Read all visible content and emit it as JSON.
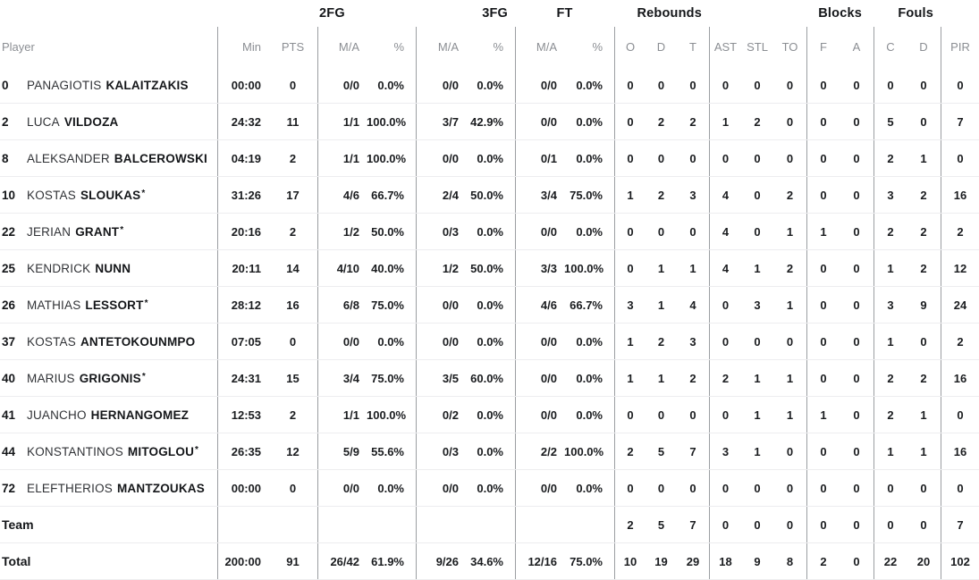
{
  "colors": {
    "data_text": "#1a1c1f",
    "header_text": "#8b8e93",
    "group_divider": "#9b9ea2",
    "row_separator": "#ededef",
    "background": "#ffffff"
  },
  "table": {
    "groups": {
      "fg2": "2FG",
      "fg3": "3FG",
      "ft": "FT",
      "rebounds": "Rebounds",
      "blocks": "Blocks",
      "fouls": "Fouls"
    },
    "headers": {
      "player": "Player",
      "min": "Min",
      "pts": "PTS",
      "fg2_ma": "M/A",
      "fg2_pct": "%",
      "fg3_ma": "M/A",
      "fg3_pct": "%",
      "ft_ma": "M/A",
      "ft_pct": "%",
      "reb_o": "O",
      "reb_d": "D",
      "reb_t": "T",
      "ast": "AST",
      "stl": "STL",
      "to": "TO",
      "blk_f": "F",
      "blk_a": "A",
      "foul_c": "C",
      "foul_d": "D",
      "pir": "PIR"
    }
  },
  "players": [
    {
      "number": "0",
      "first": "PANAGIOTIS",
      "last": "KALAITZAKIS",
      "star": "",
      "min": "00:00",
      "pts": "0",
      "fg2_ma": "0/0",
      "fg2_pct": "0.0%",
      "fg3_ma": "0/0",
      "fg3_pct": "0.0%",
      "ft_ma": "0/0",
      "ft_pct": "0.0%",
      "reb_o": "0",
      "reb_d": "0",
      "reb_t": "0",
      "ast": "0",
      "stl": "0",
      "to": "0",
      "blk_f": "0",
      "blk_a": "0",
      "foul_c": "0",
      "foul_d": "0",
      "pir": "0"
    },
    {
      "number": "2",
      "first": "LUCA",
      "last": "VILDOZA",
      "star": "",
      "min": "24:32",
      "pts": "11",
      "fg2_ma": "1/1",
      "fg2_pct": "100.0%",
      "fg3_ma": "3/7",
      "fg3_pct": "42.9%",
      "ft_ma": "0/0",
      "ft_pct": "0.0%",
      "reb_o": "0",
      "reb_d": "2",
      "reb_t": "2",
      "ast": "1",
      "stl": "2",
      "to": "0",
      "blk_f": "0",
      "blk_a": "0",
      "foul_c": "5",
      "foul_d": "0",
      "pir": "7"
    },
    {
      "number": "8",
      "first": "ALEKSANDER",
      "last": "BALCEROWSKI",
      "star": "",
      "min": "04:19",
      "pts": "2",
      "fg2_ma": "1/1",
      "fg2_pct": "100.0%",
      "fg3_ma": "0/0",
      "fg3_pct": "0.0%",
      "ft_ma": "0/1",
      "ft_pct": "0.0%",
      "reb_o": "0",
      "reb_d": "0",
      "reb_t": "0",
      "ast": "0",
      "stl": "0",
      "to": "0",
      "blk_f": "0",
      "blk_a": "0",
      "foul_c": "2",
      "foul_d": "1",
      "pir": "0"
    },
    {
      "number": "10",
      "first": "KOSTAS",
      "last": "SLOUKAS",
      "star": "*",
      "min": "31:26",
      "pts": "17",
      "fg2_ma": "4/6",
      "fg2_pct": "66.7%",
      "fg3_ma": "2/4",
      "fg3_pct": "50.0%",
      "ft_ma": "3/4",
      "ft_pct": "75.0%",
      "reb_o": "1",
      "reb_d": "2",
      "reb_t": "3",
      "ast": "4",
      "stl": "0",
      "to": "2",
      "blk_f": "0",
      "blk_a": "0",
      "foul_c": "3",
      "foul_d": "2",
      "pir": "16"
    },
    {
      "number": "22",
      "first": "JERIAN",
      "last": "GRANT",
      "star": "*",
      "min": "20:16",
      "pts": "2",
      "fg2_ma": "1/2",
      "fg2_pct": "50.0%",
      "fg3_ma": "0/3",
      "fg3_pct": "0.0%",
      "ft_ma": "0/0",
      "ft_pct": "0.0%",
      "reb_o": "0",
      "reb_d": "0",
      "reb_t": "0",
      "ast": "4",
      "stl": "0",
      "to": "1",
      "blk_f": "1",
      "blk_a": "0",
      "foul_c": "2",
      "foul_d": "2",
      "pir": "2"
    },
    {
      "number": "25",
      "first": "KENDRICK",
      "last": "NUNN",
      "star": "",
      "min": "20:11",
      "pts": "14",
      "fg2_ma": "4/10",
      "fg2_pct": "40.0%",
      "fg3_ma": "1/2",
      "fg3_pct": "50.0%",
      "ft_ma": "3/3",
      "ft_pct": "100.0%",
      "reb_o": "0",
      "reb_d": "1",
      "reb_t": "1",
      "ast": "4",
      "stl": "1",
      "to": "2",
      "blk_f": "0",
      "blk_a": "0",
      "foul_c": "1",
      "foul_d": "2",
      "pir": "12"
    },
    {
      "number": "26",
      "first": "MATHIAS",
      "last": "LESSORT",
      "star": "*",
      "min": "28:12",
      "pts": "16",
      "fg2_ma": "6/8",
      "fg2_pct": "75.0%",
      "fg3_ma": "0/0",
      "fg3_pct": "0.0%",
      "ft_ma": "4/6",
      "ft_pct": "66.7%",
      "reb_o": "3",
      "reb_d": "1",
      "reb_t": "4",
      "ast": "0",
      "stl": "3",
      "to": "1",
      "blk_f": "0",
      "blk_a": "0",
      "foul_c": "3",
      "foul_d": "9",
      "pir": "24"
    },
    {
      "number": "37",
      "first": "KOSTAS",
      "last": "ANTETOKOUNMPO",
      "star": "",
      "min": "07:05",
      "pts": "0",
      "fg2_ma": "0/0",
      "fg2_pct": "0.0%",
      "fg3_ma": "0/0",
      "fg3_pct": "0.0%",
      "ft_ma": "0/0",
      "ft_pct": "0.0%",
      "reb_o": "1",
      "reb_d": "2",
      "reb_t": "3",
      "ast": "0",
      "stl": "0",
      "to": "0",
      "blk_f": "0",
      "blk_a": "0",
      "foul_c": "1",
      "foul_d": "0",
      "pir": "2"
    },
    {
      "number": "40",
      "first": "MARIUS",
      "last": "GRIGONIS",
      "star": "*",
      "min": "24:31",
      "pts": "15",
      "fg2_ma": "3/4",
      "fg2_pct": "75.0%",
      "fg3_ma": "3/5",
      "fg3_pct": "60.0%",
      "ft_ma": "0/0",
      "ft_pct": "0.0%",
      "reb_o": "1",
      "reb_d": "1",
      "reb_t": "2",
      "ast": "2",
      "stl": "1",
      "to": "1",
      "blk_f": "0",
      "blk_a": "0",
      "foul_c": "2",
      "foul_d": "2",
      "pir": "16"
    },
    {
      "number": "41",
      "first": "JUANCHO",
      "last": "HERNANGOMEZ",
      "star": "",
      "min": "12:53",
      "pts": "2",
      "fg2_ma": "1/1",
      "fg2_pct": "100.0%",
      "fg3_ma": "0/2",
      "fg3_pct": "0.0%",
      "ft_ma": "0/0",
      "ft_pct": "0.0%",
      "reb_o": "0",
      "reb_d": "0",
      "reb_t": "0",
      "ast": "0",
      "stl": "1",
      "to": "1",
      "blk_f": "1",
      "blk_a": "0",
      "foul_c": "2",
      "foul_d": "1",
      "pir": "0"
    },
    {
      "number": "44",
      "first": "KONSTANTINOS",
      "last": "MITOGLOU",
      "star": "*",
      "min": "26:35",
      "pts": "12",
      "fg2_ma": "5/9",
      "fg2_pct": "55.6%",
      "fg3_ma": "0/3",
      "fg3_pct": "0.0%",
      "ft_ma": "2/2",
      "ft_pct": "100.0%",
      "reb_o": "2",
      "reb_d": "5",
      "reb_t": "7",
      "ast": "3",
      "stl": "1",
      "to": "0",
      "blk_f": "0",
      "blk_a": "0",
      "foul_c": "1",
      "foul_d": "1",
      "pir": "16"
    },
    {
      "number": "72",
      "first": "ELEFTHERIOS",
      "last": "MANTZOUKAS",
      "star": "",
      "min": "00:00",
      "pts": "0",
      "fg2_ma": "0/0",
      "fg2_pct": "0.0%",
      "fg3_ma": "0/0",
      "fg3_pct": "0.0%",
      "ft_ma": "0/0",
      "ft_pct": "0.0%",
      "reb_o": "0",
      "reb_d": "0",
      "reb_t": "0",
      "ast": "0",
      "stl": "0",
      "to": "0",
      "blk_f": "0",
      "blk_a": "0",
      "foul_c": "0",
      "foul_d": "0",
      "pir": "0"
    }
  ],
  "team": {
    "label": "Team",
    "min": "",
    "pts": "",
    "fg2_ma": "",
    "fg2_pct": "",
    "fg3_ma": "",
    "fg3_pct": "",
    "ft_ma": "",
    "ft_pct": "",
    "reb_o": "2",
    "reb_d": "5",
    "reb_t": "7",
    "ast": "0",
    "stl": "0",
    "to": "0",
    "blk_f": "0",
    "blk_a": "0",
    "foul_c": "0",
    "foul_d": "0",
    "pir": "7"
  },
  "total": {
    "label": "Total",
    "min": "200:00",
    "pts": "91",
    "fg2_ma": "26/42",
    "fg2_pct": "61.9%",
    "fg3_ma": "9/26",
    "fg3_pct": "34.6%",
    "ft_ma": "12/16",
    "ft_pct": "75.0%",
    "reb_o": "10",
    "reb_d": "19",
    "reb_t": "29",
    "ast": "18",
    "stl": "9",
    "to": "8",
    "blk_f": "2",
    "blk_a": "0",
    "foul_c": "22",
    "foul_d": "20",
    "pir": "102"
  }
}
